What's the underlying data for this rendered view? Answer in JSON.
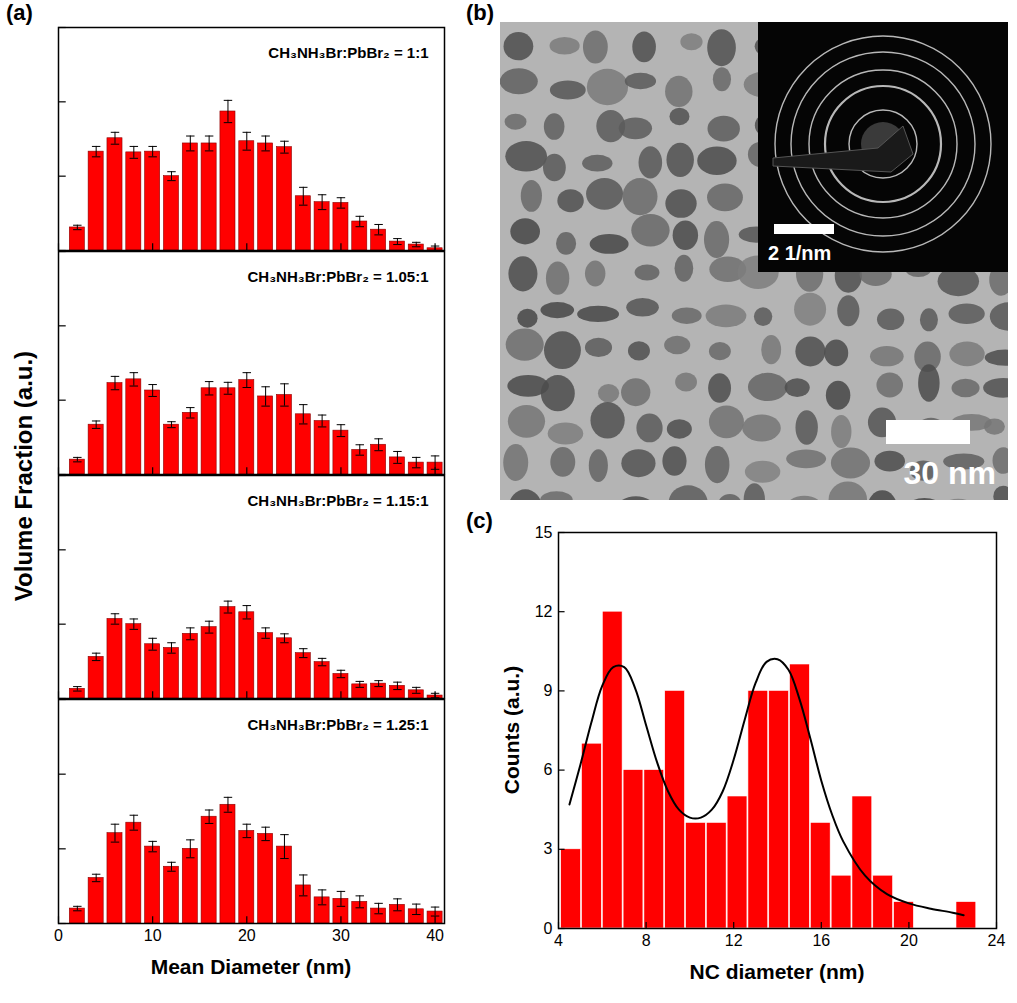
{
  "chart_data": [
    {
      "type": "bar",
      "panel": "(a)",
      "title": "CH₃NH₃Br:PbBr₂ = 1:1",
      "ylabel": "Volume Fraction (a.u.)",
      "x": [
        2,
        4,
        6,
        8,
        10,
        12,
        14,
        16,
        18,
        20,
        22,
        24,
        26,
        28,
        30,
        32,
        34,
        36,
        38,
        40
      ],
      "values": [
        0.31,
        1.33,
        1.51,
        1.32,
        1.33,
        1.0,
        1.44,
        1.44,
        1.87,
        1.47,
        1.44,
        1.39,
        0.73,
        0.65,
        0.64,
        0.39,
        0.28,
        0.12,
        0.08,
        0.03
      ],
      "errors": [
        0.03,
        0.07,
        0.08,
        0.08,
        0.07,
        0.06,
        0.1,
        0.1,
        0.15,
        0.12,
        0.1,
        0.08,
        0.12,
        0.1,
        0.07,
        0.07,
        0.07,
        0.04,
        0.03,
        0.03
      ],
      "color": "#ff0000",
      "xlim": [
        0,
        41
      ],
      "xticks": [
        0,
        10,
        20,
        30,
        40
      ],
      "ylim": [
        0,
        3
      ],
      "yticks": [
        0,
        1,
        2,
        3
      ],
      "tick_labels": false
    },
    {
      "type": "bar",
      "title": "CH₃NH₃Br:PbBr₂ = 1.05:1",
      "x": [
        2,
        4,
        6,
        8,
        10,
        12,
        14,
        16,
        18,
        20,
        22,
        24,
        26,
        28,
        30,
        32,
        34,
        36,
        38,
        40
      ],
      "values": [
        0.2,
        0.67,
        1.23,
        1.28,
        1.13,
        0.67,
        0.83,
        1.16,
        1.16,
        1.27,
        1.05,
        1.07,
        0.81,
        0.72,
        0.59,
        0.33,
        0.4,
        0.23,
        0.16,
        0.16
      ],
      "errors": [
        0.03,
        0.05,
        0.09,
        0.09,
        0.08,
        0.04,
        0.07,
        0.09,
        0.08,
        0.1,
        0.13,
        0.15,
        0.13,
        0.08,
        0.08,
        0.07,
        0.08,
        0.08,
        0.07,
        0.09
      ],
      "color": "#ff0000",
      "xlim": [
        0,
        41
      ],
      "xticks": [
        0,
        10,
        20,
        30,
        40
      ],
      "ylim": [
        0,
        3
      ],
      "yticks": [
        0,
        1,
        2,
        3
      ],
      "tick_labels": false
    },
    {
      "type": "bar",
      "title": "CH₃NH₃Br:PbBr₂ = 1.15:1",
      "x": [
        2,
        4,
        6,
        8,
        10,
        12,
        14,
        16,
        18,
        20,
        22,
        24,
        26,
        28,
        30,
        32,
        34,
        36,
        38,
        40
      ],
      "values": [
        0.13,
        0.56,
        1.07,
        1.0,
        0.73,
        0.68,
        0.87,
        0.96,
        1.23,
        1.16,
        0.88,
        0.81,
        0.61,
        0.49,
        0.33,
        0.19,
        0.2,
        0.17,
        0.11,
        0.04
      ],
      "errors": [
        0.03,
        0.05,
        0.07,
        0.07,
        0.08,
        0.07,
        0.08,
        0.08,
        0.08,
        0.09,
        0.07,
        0.06,
        0.06,
        0.05,
        0.05,
        0.04,
        0.04,
        0.05,
        0.04,
        0.03
      ],
      "color": "#ff0000",
      "xlim": [
        0,
        41
      ],
      "xticks": [
        0,
        10,
        20,
        30,
        40
      ],
      "ylim": [
        0,
        3
      ],
      "yticks": [
        0,
        1,
        2,
        3
      ],
      "tick_labels": false
    },
    {
      "type": "bar",
      "title": "CH₃NH₃Br:PbBr₂ = 1.25:1",
      "xlabel": "Mean Diameter (nm)",
      "x": [
        2,
        4,
        6,
        8,
        10,
        12,
        14,
        16,
        18,
        20,
        22,
        24,
        26,
        28,
        30,
        32,
        34,
        36,
        38,
        40
      ],
      "values": [
        0.2,
        0.61,
        1.21,
        1.35,
        1.03,
        0.76,
        1.0,
        1.43,
        1.59,
        1.24,
        1.2,
        1.03,
        0.51,
        0.35,
        0.33,
        0.29,
        0.2,
        0.25,
        0.19,
        0.16
      ],
      "errors": [
        0.03,
        0.05,
        0.12,
        0.1,
        0.07,
        0.06,
        0.12,
        0.09,
        0.1,
        0.09,
        0.09,
        0.16,
        0.14,
        0.1,
        0.1,
        0.08,
        0.07,
        0.08,
        0.07,
        0.06
      ],
      "color": "#ff0000",
      "xlim": [
        0,
        41
      ],
      "xticks": [
        0,
        10,
        20,
        30,
        40
      ],
      "ylim": [
        0,
        3
      ],
      "yticks": [
        0,
        1,
        2,
        3
      ],
      "tick_labels": "x"
    },
    {
      "type": "image",
      "panel": "(b)",
      "annotations": [
        "30 nm",
        "2 1/nm"
      ]
    },
    {
      "type": "histogram",
      "panel": "(c)",
      "xlabel": "NC diameter (nm)",
      "ylabel": "Counts (a.u.)",
      "bins": [
        4.1,
        5.05,
        6.0,
        6.95,
        7.9,
        8.85,
        9.8,
        10.75,
        11.7,
        12.65,
        13.6,
        14.55,
        15.5,
        16.45,
        17.4,
        18.35,
        19.3,
        20.25,
        21.2,
        22.15,
        23.1
      ],
      "values": [
        3,
        7,
        12,
        6,
        6,
        9,
        4,
        4,
        5,
        9,
        9,
        10,
        4,
        2,
        5,
        2,
        1,
        0,
        0,
        1
      ],
      "color": "#ff0000",
      "series": [
        {
          "type": "line",
          "color": "#000000",
          "x": [
            4.5,
            5,
            5.5,
            6,
            6.5,
            7,
            7.5,
            8,
            8.5,
            9,
            9.5,
            10,
            10.5,
            11,
            11.5,
            12,
            12.5,
            13,
            13.5,
            14,
            14.5,
            15,
            15.5,
            16,
            16.5,
            17,
            18,
            19,
            20,
            21,
            22,
            22.5
          ],
          "values": [
            4.7,
            6.2,
            7.8,
            9.2,
            9.9,
            9.9,
            9.1,
            7.7,
            6.3,
            5.2,
            4.5,
            4.2,
            4.2,
            4.5,
            5.2,
            6.4,
            7.9,
            9.3,
            10.1,
            10.2,
            9.8,
            8.7,
            7.2,
            5.6,
            4.3,
            3.3,
            2.0,
            1.3,
            0.95,
            0.75,
            0.6,
            0.5
          ]
        }
      ],
      "xlim": [
        4,
        24
      ],
      "xticks": [
        4,
        8,
        12,
        16,
        20,
        24
      ],
      "ylim": [
        0,
        15
      ],
      "yticks": [
        0,
        3,
        6,
        9,
        12,
        15
      ]
    }
  ]
}
